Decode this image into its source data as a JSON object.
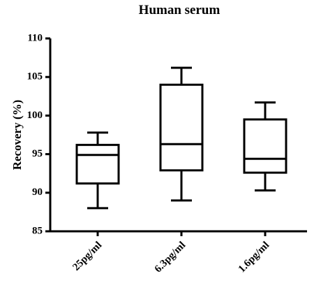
{
  "chart_data": {
    "type": "box",
    "title": "Human serum",
    "y_label": "Recovery (%)",
    "categories": [
      "25pg/ml",
      "6.3pg/ml",
      "1.6pg/ml"
    ],
    "min": [
      88.0,
      89.0,
      90.3
    ],
    "q1": [
      91.2,
      92.9,
      92.6
    ],
    "median": [
      94.9,
      96.3,
      94.4
    ],
    "q3": [
      96.2,
      104.0,
      99.5
    ],
    "max": [
      97.8,
      106.2,
      101.7
    ],
    "color": "#000000",
    "ylim": [
      85,
      110
    ],
    "yticks": [
      85,
      90,
      95,
      100,
      105,
      110
    ],
    "grid": false
  }
}
